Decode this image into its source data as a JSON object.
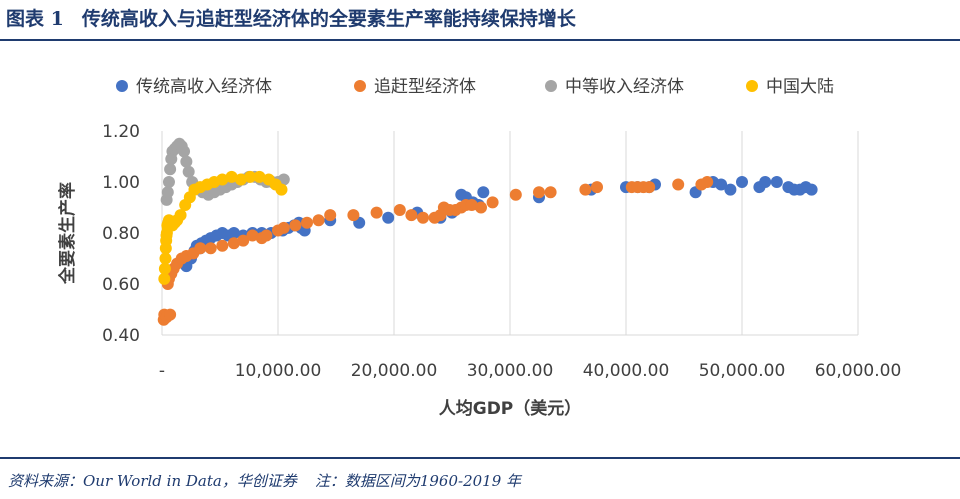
{
  "figure": {
    "label": "图表 1",
    "title": "传统高收入与追赶型经济体的全要素生产率能持续保持增长"
  },
  "footer": {
    "source": "资料来源：Our World in Data，华创证券",
    "note": "注：数据区间为1960-2019 年"
  },
  "chart_data": {
    "type": "scatter",
    "xlabel": "人均GDP（美元）",
    "ylabel": "全要素生产率",
    "xlim": [
      0,
      60000
    ],
    "ylim": [
      0.4,
      1.2
    ],
    "x_ticks": [
      0,
      10000,
      20000,
      30000,
      40000,
      50000,
      60000
    ],
    "x_tick_labels": [
      "-",
      "10,000.00",
      "20,000.00",
      "30,000.00",
      "40,000.00",
      "50,000.00",
      "60,000.00"
    ],
    "y_ticks": [
      0.4,
      0.6,
      0.8,
      1.0,
      1.2
    ],
    "y_tick_labels": [
      "0.40",
      "0.60",
      "0.80",
      "1.00",
      "1.20"
    ],
    "grid": "vertical",
    "legend_position": "top",
    "series": [
      {
        "name": "传统高收入经济体",
        "color": "#4472c4",
        "points": [
          [
            2500,
            0.7
          ],
          [
            2800,
            0.73
          ],
          [
            3000,
            0.75
          ],
          [
            3400,
            0.76
          ],
          [
            3800,
            0.77
          ],
          [
            4200,
            0.78
          ],
          [
            4700,
            0.79
          ],
          [
            5200,
            0.8
          ],
          [
            5700,
            0.79
          ],
          [
            6200,
            0.8
          ],
          [
            7000,
            0.79
          ],
          [
            7800,
            0.8
          ],
          [
            8600,
            0.8
          ],
          [
            9400,
            0.8
          ],
          [
            10400,
            0.81
          ],
          [
            10900,
            0.82
          ],
          [
            11400,
            0.83
          ],
          [
            11800,
            0.84
          ],
          [
            12000,
            0.82
          ],
          [
            12300,
            0.81
          ],
          [
            14500,
            0.85
          ],
          [
            17000,
            0.84
          ],
          [
            19500,
            0.86
          ],
          [
            22000,
            0.88
          ],
          [
            24000,
            0.86
          ],
          [
            25000,
            0.88
          ],
          [
            25800,
            0.95
          ],
          [
            26200,
            0.94
          ],
          [
            26800,
            0.92
          ],
          [
            27300,
            0.91
          ],
          [
            27700,
            0.96
          ],
          [
            32500,
            0.94
          ],
          [
            37000,
            0.97
          ],
          [
            40000,
            0.98
          ],
          [
            41000,
            0.98
          ],
          [
            42000,
            0.98
          ],
          [
            42500,
            0.99
          ],
          [
            46000,
            0.96
          ],
          [
            47500,
            1.0
          ],
          [
            48200,
            0.99
          ],
          [
            49000,
            0.97
          ],
          [
            50000,
            1.0
          ],
          [
            51500,
            0.98
          ],
          [
            52000,
            1.0
          ],
          [
            53000,
            1.0
          ],
          [
            54000,
            0.98
          ],
          [
            54500,
            0.97
          ],
          [
            55000,
            0.97
          ],
          [
            55500,
            0.98
          ],
          [
            56000,
            0.97
          ],
          [
            3300,
            0.74
          ],
          [
            2100,
            0.67
          ]
        ]
      },
      {
        "name": "追赶型经济体",
        "color": "#ed7d31",
        "points": [
          [
            150,
            0.46
          ],
          [
            200,
            0.48
          ],
          [
            400,
            0.47
          ],
          [
            700,
            0.48
          ],
          [
            500,
            0.6
          ],
          [
            600,
            0.62
          ],
          [
            800,
            0.64
          ],
          [
            1000,
            0.66
          ],
          [
            1300,
            0.68
          ],
          [
            1700,
            0.7
          ],
          [
            2100,
            0.71
          ],
          [
            2700,
            0.72
          ],
          [
            3300,
            0.74
          ],
          [
            4200,
            0.74
          ],
          [
            5200,
            0.75
          ],
          [
            6200,
            0.76
          ],
          [
            7000,
            0.77
          ],
          [
            7800,
            0.79
          ],
          [
            8600,
            0.78
          ],
          [
            9000,
            0.79
          ],
          [
            10000,
            0.81
          ],
          [
            10500,
            0.82
          ],
          [
            11500,
            0.83
          ],
          [
            12500,
            0.84
          ],
          [
            13500,
            0.85
          ],
          [
            14500,
            0.87
          ],
          [
            16500,
            0.87
          ],
          [
            18500,
            0.88
          ],
          [
            20500,
            0.89
          ],
          [
            21500,
            0.87
          ],
          [
            22500,
            0.86
          ],
          [
            23500,
            0.86
          ],
          [
            24000,
            0.87
          ],
          [
            24300,
            0.9
          ],
          [
            24800,
            0.89
          ],
          [
            25300,
            0.89
          ],
          [
            25800,
            0.9
          ],
          [
            26200,
            0.91
          ],
          [
            26700,
            0.91
          ],
          [
            27500,
            0.9
          ],
          [
            28500,
            0.92
          ],
          [
            30500,
            0.95
          ],
          [
            32500,
            0.96
          ],
          [
            33500,
            0.96
          ],
          [
            36500,
            0.97
          ],
          [
            37500,
            0.98
          ],
          [
            40500,
            0.98
          ],
          [
            41000,
            0.98
          ],
          [
            41500,
            0.98
          ],
          [
            42000,
            0.98
          ],
          [
            44500,
            0.99
          ],
          [
            46500,
            0.99
          ],
          [
            47000,
            1.0
          ]
        ]
      },
      {
        "name": "中等收入经济体",
        "color": "#a5a5a5",
        "points": [
          [
            400,
            0.93
          ],
          [
            500,
            0.96
          ],
          [
            600,
            1.0
          ],
          [
            700,
            1.05
          ],
          [
            800,
            1.09
          ],
          [
            900,
            1.12
          ],
          [
            1100,
            1.13
          ],
          [
            1300,
            1.14
          ],
          [
            1500,
            1.15
          ],
          [
            1700,
            1.14
          ],
          [
            1900,
            1.12
          ],
          [
            2100,
            1.08
          ],
          [
            2300,
            1.04
          ],
          [
            2600,
            1.0
          ],
          [
            3000,
            0.98
          ],
          [
            3500,
            0.96
          ],
          [
            4000,
            0.95
          ],
          [
            4500,
            0.96
          ],
          [
            5000,
            0.97
          ],
          [
            5500,
            0.98
          ],
          [
            6000,
            0.99
          ],
          [
            6500,
            1.0
          ],
          [
            7000,
            1.01
          ],
          [
            7500,
            1.02
          ],
          [
            8000,
            1.02
          ],
          [
            8500,
            1.01
          ],
          [
            9000,
            1.0
          ],
          [
            9500,
            1.0
          ],
          [
            10000,
            1.0
          ],
          [
            10500,
            1.01
          ]
        ]
      },
      {
        "name": "中国大陆",
        "color": "#ffc000",
        "points": [
          [
            200,
            0.62
          ],
          [
            250,
            0.66
          ],
          [
            300,
            0.7
          ],
          [
            330,
            0.74
          ],
          [
            360,
            0.77
          ],
          [
            390,
            0.79
          ],
          [
            420,
            0.8
          ],
          [
            460,
            0.83
          ],
          [
            500,
            0.82
          ],
          [
            540,
            0.84
          ],
          [
            600,
            0.85
          ],
          [
            700,
            0.84
          ],
          [
            900,
            0.83
          ],
          [
            1100,
            0.84
          ],
          [
            1300,
            0.85
          ],
          [
            1600,
            0.87
          ],
          [
            2000,
            0.91
          ],
          [
            2400,
            0.94
          ],
          [
            2800,
            0.97
          ],
          [
            3300,
            0.98
          ],
          [
            3900,
            0.99
          ],
          [
            4500,
            1.0
          ],
          [
            5200,
            1.01
          ],
          [
            6000,
            1.02
          ],
          [
            6800,
            1.01
          ],
          [
            7600,
            1.02
          ],
          [
            8400,
            1.02
          ],
          [
            9200,
            1.01
          ],
          [
            9800,
            0.99
          ],
          [
            10300,
            0.97
          ]
        ]
      }
    ]
  }
}
